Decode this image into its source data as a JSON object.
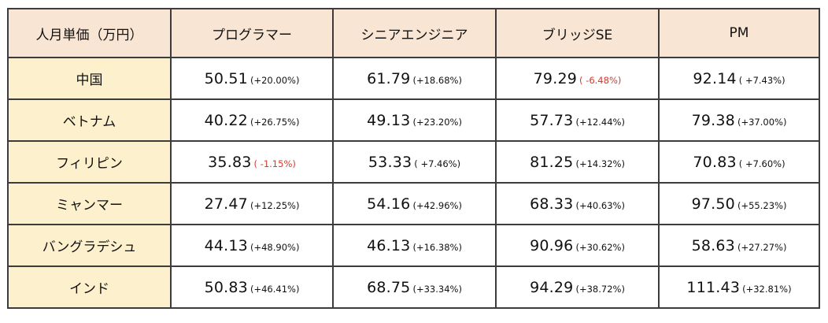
{
  "table": {
    "headers": [
      "人月単価（万円）",
      "プログラマー",
      "シニアエンジニア",
      "ブリッジSE",
      "PM"
    ],
    "rows": [
      {
        "country": "中国",
        "cells": [
          {
            "value": "50.51",
            "change": "(+20.00%)",
            "negative": false
          },
          {
            "value": "61.79",
            "change": "(+18.68%)",
            "negative": false
          },
          {
            "value": "79.29",
            "change": "(  -6.48%)",
            "negative": true
          },
          {
            "value": "92.14",
            "change": "(  +7.43%)",
            "negative": false
          }
        ]
      },
      {
        "country": "ベトナム",
        "cells": [
          {
            "value": "40.22",
            "change": "(+26.75%)",
            "negative": false
          },
          {
            "value": "49.13",
            "change": "(+23.20%)",
            "negative": false
          },
          {
            "value": "57.73",
            "change": "(+12.44%)",
            "negative": false
          },
          {
            "value": "79.38",
            "change": "(+37.00%)",
            "negative": false
          }
        ]
      },
      {
        "country": "フィリピン",
        "cells": [
          {
            "value": "35.83",
            "change": "(  -1.15%)",
            "negative": true
          },
          {
            "value": "53.33",
            "change": "(  +7.46%)",
            "negative": false
          },
          {
            "value": "81.25",
            "change": "(+14.32%)",
            "negative": false
          },
          {
            "value": "70.83",
            "change": "(  +7.60%)",
            "negative": false
          }
        ]
      },
      {
        "country": "ミャンマー",
        "cells": [
          {
            "value": "27.47",
            "change": "(+12.25%)",
            "negative": false
          },
          {
            "value": "54.16",
            "change": "(+42.96%)",
            "negative": false
          },
          {
            "value": "68.33",
            "change": "(+40.63%)",
            "negative": false
          },
          {
            "value": "97.50",
            "change": "(+55.23%)",
            "negative": false
          }
        ]
      },
      {
        "country": "バングラデシュ",
        "cells": [
          {
            "value": "44.13",
            "change": "(+48.90%)",
            "negative": false
          },
          {
            "value": "46.13",
            "change": "(+16.38%)",
            "negative": false
          },
          {
            "value": "90.96",
            "change": "(+30.62%)",
            "negative": false
          },
          {
            "value": "58.63",
            "change": "(+27.27%)",
            "negative": false
          }
        ]
      },
      {
        "country": "インド",
        "cells": [
          {
            "value": "50.83",
            "change": "(+46.41%)",
            "negative": false
          },
          {
            "value": "68.75",
            "change": "(+33.34%)",
            "negative": false
          },
          {
            "value": "94.29",
            "change": "(+38.72%)",
            "negative": false
          },
          {
            "value": "111.43",
            "change": "(+32.81%)",
            "negative": false
          }
        ]
      }
    ]
  },
  "colors": {
    "header_bg": "#f8e5d4",
    "row_header_bg": "#fdf0cc",
    "negative_text": "#d43a2c",
    "border": "#3c3c3c"
  }
}
